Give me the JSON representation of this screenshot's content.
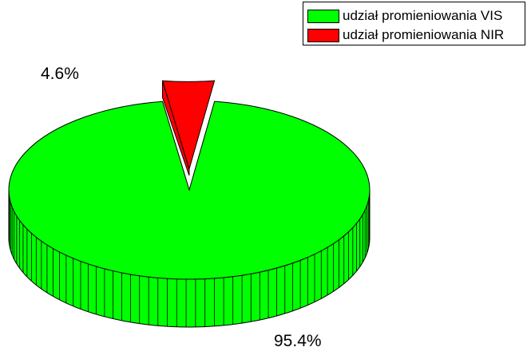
{
  "chart_data": {
    "type": "pie",
    "style": "3d-exploded",
    "slices": [
      {
        "label": "udział promieniowania VIS",
        "value": 95.4,
        "display": "95.4%",
        "color": "#00FF00"
      },
      {
        "label": "udział promieniowania NIR",
        "value": 4.6,
        "display": "4.6%",
        "color": "#FF0000"
      }
    ],
    "legend": {
      "position": "top-right",
      "entries": [
        "udział promieniowania VIS",
        "udział promieniowania NIR"
      ]
    }
  }
}
